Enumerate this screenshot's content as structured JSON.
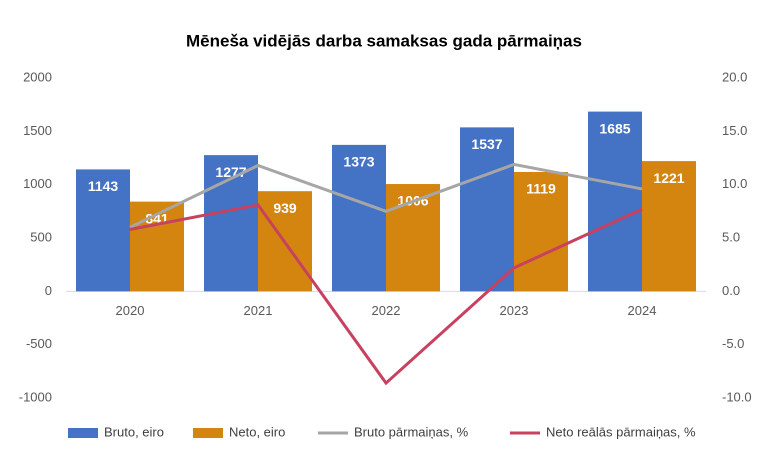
{
  "chart_data": {
    "type": "bar",
    "title": "Mēneša vidējās darba samaksas gada pārmaiņas",
    "categories": [
      "2020",
      "2021",
      "2022",
      "2023",
      "2024"
    ],
    "series": [
      {
        "name": "Bruto, eiro",
        "type": "bar",
        "axis": "y",
        "color": "#4472c4",
        "values": [
          1143,
          1277,
          1373,
          1537,
          1685
        ]
      },
      {
        "name": "Neto, eiro",
        "type": "bar",
        "axis": "y",
        "color": "#d4850f",
        "values": [
          841,
          939,
          1006,
          1119,
          1221
        ]
      },
      {
        "name": "Bruto pārmaiņas, %",
        "type": "line",
        "axis": "y2",
        "color": "#a6a6a6",
        "values": [
          6.0,
          11.8,
          7.5,
          11.9,
          9.6
        ]
      },
      {
        "name": "Neto reālās pārmaiņas, %",
        "type": "line",
        "axis": "y2",
        "color": "#c8415f",
        "values": [
          5.8,
          8.1,
          -8.6,
          2.2,
          7.7
        ]
      }
    ],
    "ylim": [
      -1000,
      2000
    ],
    "yticks": [
      -1000,
      -500,
      0,
      500,
      1000,
      1500,
      2000
    ],
    "y2lim": [
      -10,
      20
    ],
    "y2ticks": [
      {
        "value": -10,
        "label": "-10.0"
      },
      {
        "value": -5,
        "label": "-5.0"
      },
      {
        "value": 0,
        "label": "0.0"
      },
      {
        "value": 5,
        "label": "5.0"
      },
      {
        "value": 10,
        "label": "10.0"
      },
      {
        "value": 15,
        "label": "15.0"
      },
      {
        "value": 20,
        "label": "20.0"
      }
    ],
    "grid": false,
    "legend": "bottom"
  }
}
